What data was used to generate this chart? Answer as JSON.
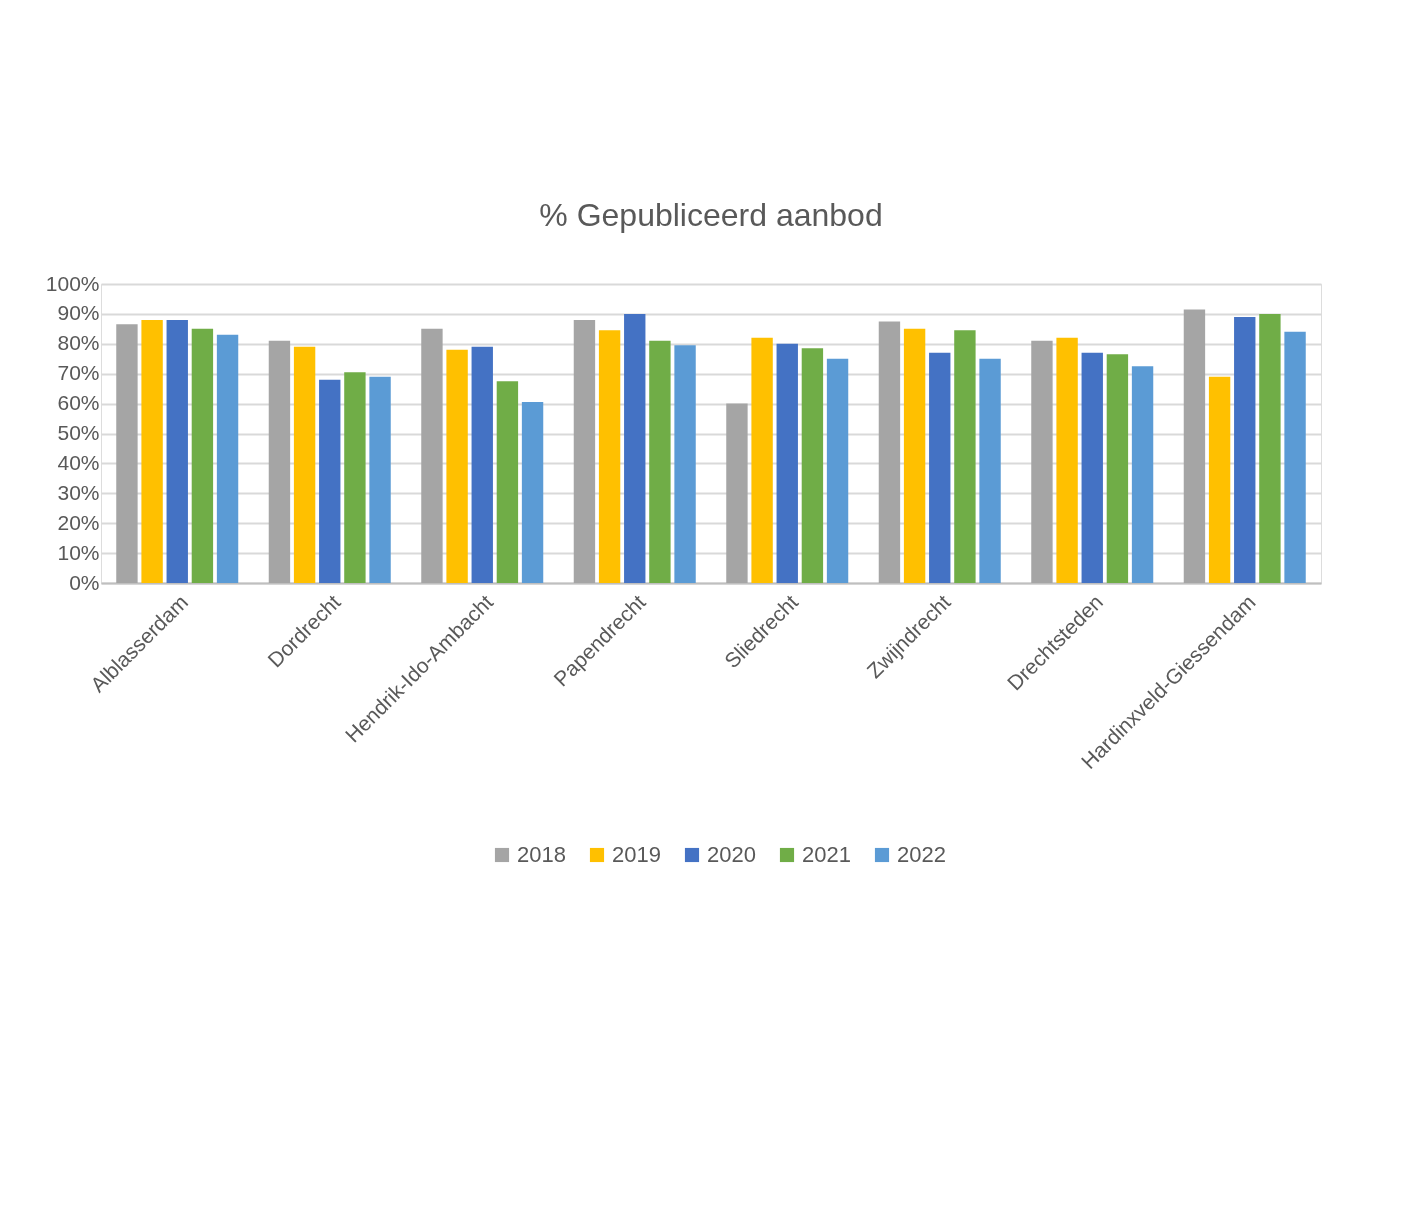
{
  "chart_data": {
    "type": "bar",
    "title": "% Gepubliceerd  aanbod",
    "categories": [
      "Alblasserdam",
      "Dordrecht",
      "Hendrik-Ido-Ambacht",
      "Papendrecht",
      "Sliedrecht",
      "Zwijndrecht",
      "Drechtsteden",
      "Hardinxveld-Giessendam"
    ],
    "series": [
      {
        "name": "2018",
        "color": "#a5a5a5",
        "values": [
          86.5,
          81,
          85,
          88,
          60,
          87.5,
          81,
          91.5
        ]
      },
      {
        "name": "2019",
        "color": "#ffc000",
        "values": [
          88,
          79,
          78,
          84.5,
          82,
          85,
          82,
          69
        ]
      },
      {
        "name": "2020",
        "color": "#4472c4",
        "values": [
          88,
          68,
          79,
          90,
          80,
          77,
          77,
          89
        ]
      },
      {
        "name": "2021",
        "color": "#70ad47",
        "values": [
          85,
          70.5,
          67.5,
          81,
          78.5,
          84.5,
          76.5,
          90
        ]
      },
      {
        "name": "2022",
        "color": "#5b9bd5",
        "values": [
          83,
          69,
          60.5,
          79.5,
          75,
          75,
          72.5,
          84
        ]
      }
    ],
    "ylim": [
      0,
      100
    ],
    "yticks": [
      {
        "value": 0,
        "label": "0%"
      },
      {
        "value": 10,
        "label": "10%"
      },
      {
        "value": 20,
        "label": "20%"
      },
      {
        "value": 30,
        "label": "30%"
      },
      {
        "value": 40,
        "label": "40%"
      },
      {
        "value": 50,
        "label": "50%"
      },
      {
        "value": 60,
        "label": "60%"
      },
      {
        "value": 70,
        "label": "70%"
      },
      {
        "value": 80,
        "label": "80%"
      },
      {
        "value": 90,
        "label": "90%"
      },
      {
        "value": 100,
        "label": "100%"
      }
    ],
    "grid": "y",
    "legend": "bottom"
  }
}
